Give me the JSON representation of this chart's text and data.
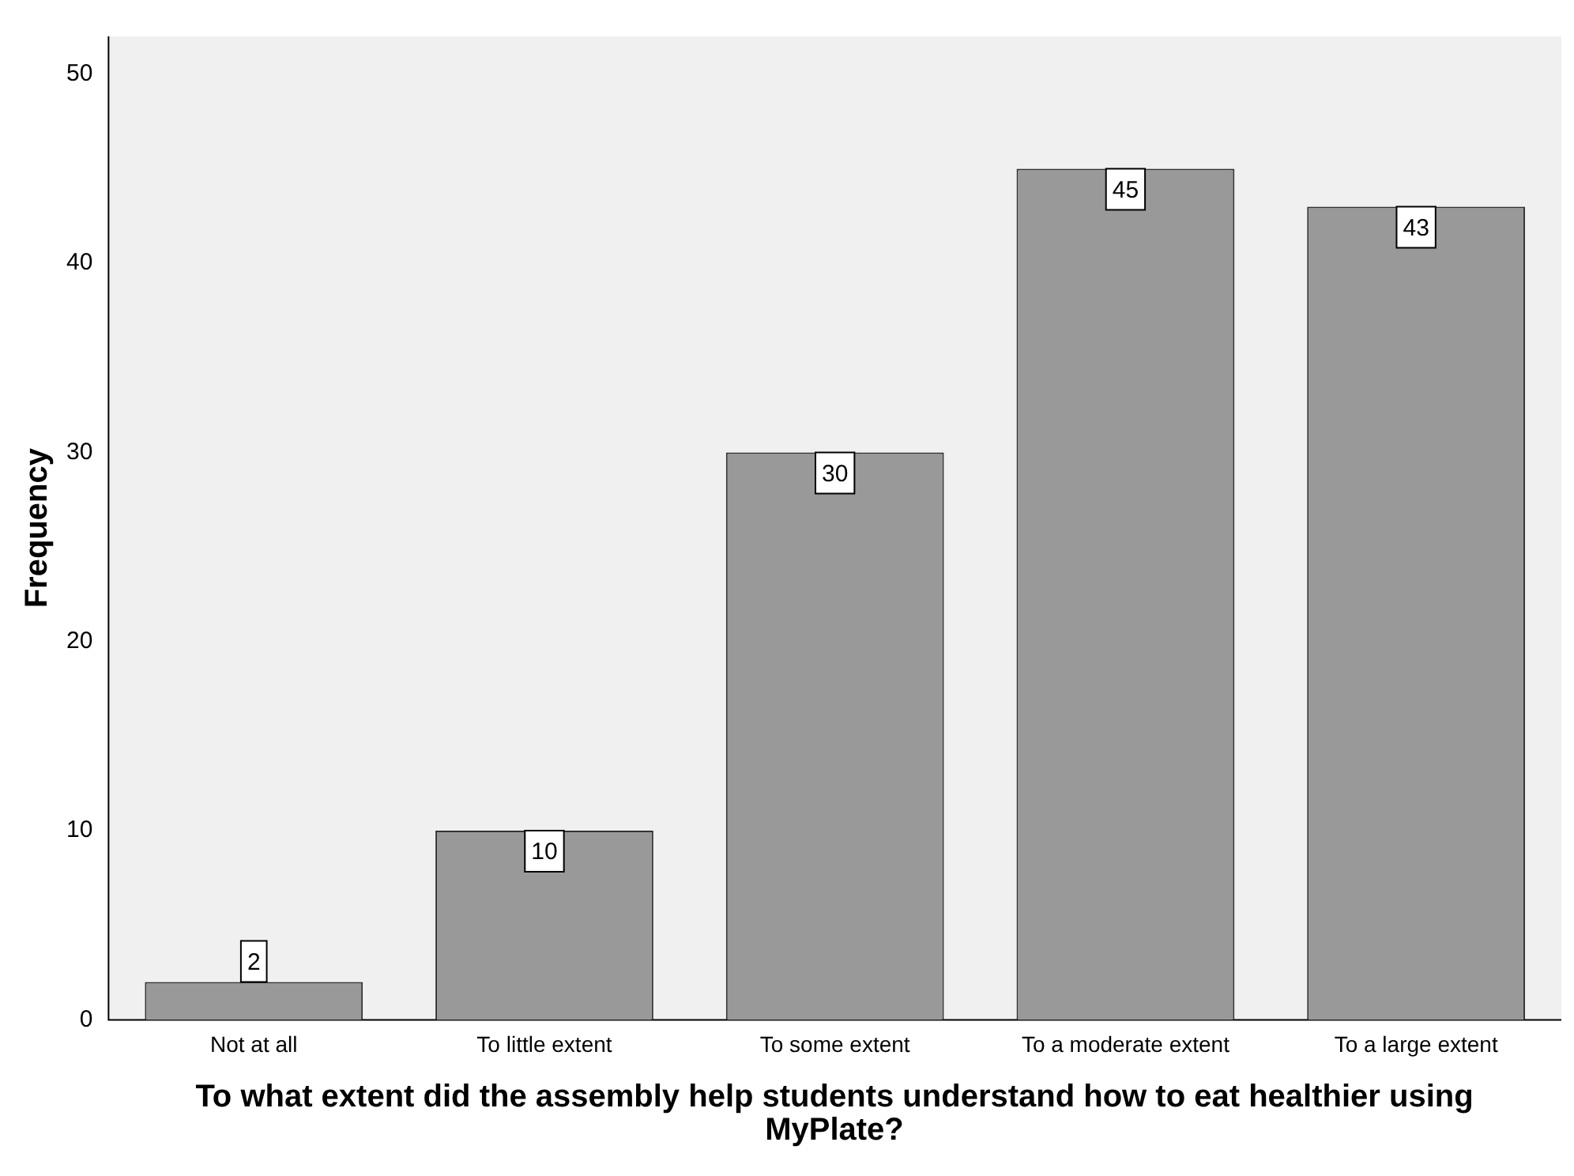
{
  "chart_data": {
    "type": "bar",
    "categories": [
      "Not at all",
      "To little extent",
      "To some extent",
      "To a moderate extent",
      "To a large extent"
    ],
    "values": [
      2,
      10,
      30,
      45,
      43
    ],
    "color": "#999999",
    "ylabel": "Frequency",
    "xlabel": "To what extent did the assembly help students understand how to eat healthier using MyPlate?",
    "ylim": [
      0,
      52
    ],
    "yticks": [
      0,
      10,
      20,
      30,
      40,
      50
    ],
    "data_labels": true,
    "grid": false,
    "legend": false
  }
}
